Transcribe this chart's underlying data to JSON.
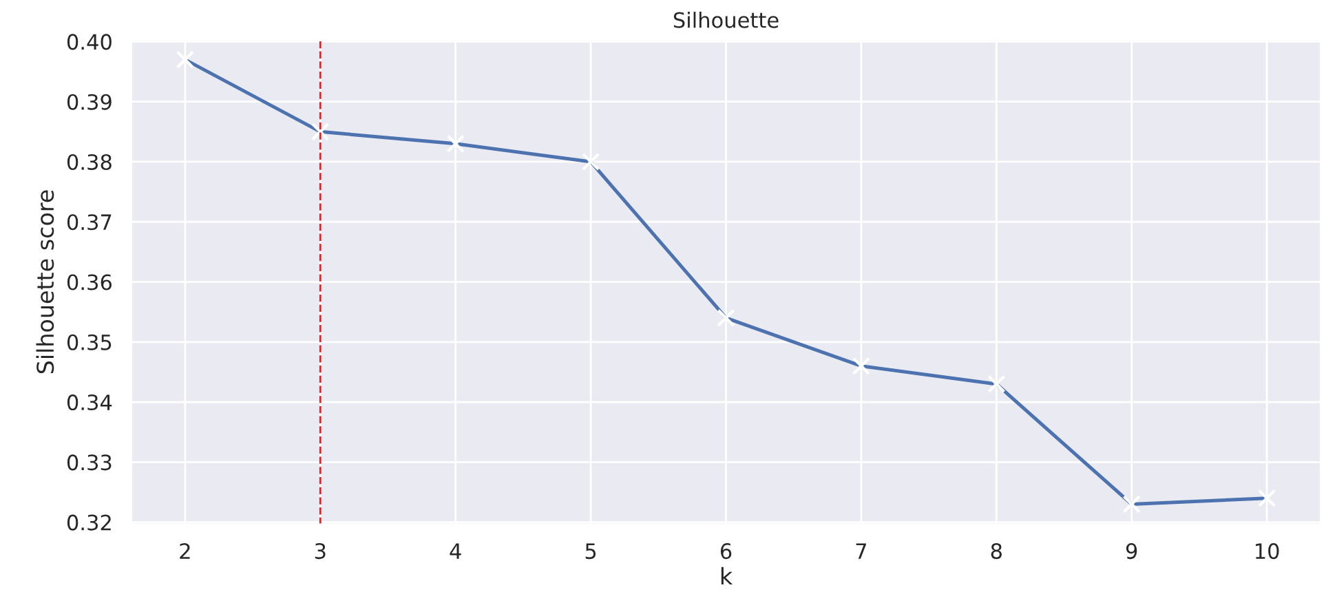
{
  "chart_data": {
    "type": "line",
    "title": "Silhouette",
    "xlabel": "k",
    "ylabel": "Silhouette score",
    "x": [
      2,
      3,
      4,
      5,
      6,
      7,
      8,
      9,
      10
    ],
    "series": [
      {
        "color": "#4c72b0",
        "values": [
          0.397,
          0.385,
          0.383,
          0.38,
          0.354,
          0.346,
          0.343,
          0.323,
          0.324
        ]
      }
    ],
    "xlim": [
      1.6,
      10.4
    ],
    "xticks": [
      2,
      3,
      4,
      5,
      6,
      7,
      8,
      9,
      10
    ],
    "ylim": [
      0.3196,
      0.4004
    ],
    "yticks": [
      0.32,
      0.33,
      0.34,
      0.35,
      0.36,
      0.37,
      0.38,
      0.39,
      {
        "value": 0.4,
        "label": "0.40"
      }
    ],
    "ref_lines": [
      {
        "axis": "x",
        "value": 3,
        "color": "#d62728",
        "line_style": "dashed"
      }
    ],
    "grid": true,
    "marker": "cross",
    "line_style": "solid"
  }
}
